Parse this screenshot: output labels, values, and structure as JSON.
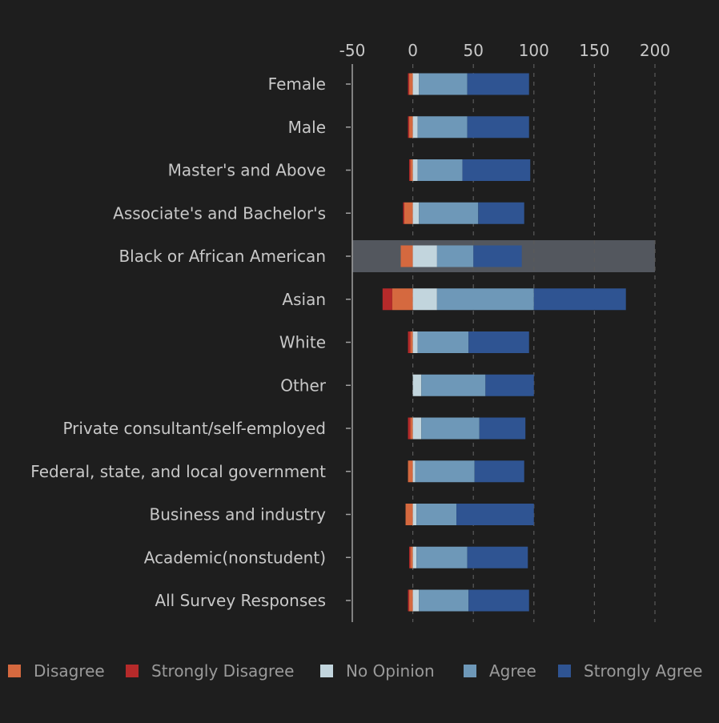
{
  "chart_data": {
    "type": "bar",
    "orientation": "horizontal",
    "stacked": true,
    "x_ticks": [
      -50,
      0,
      50,
      100,
      150,
      200
    ],
    "xlim": [
      -50,
      200
    ],
    "grid": "vertical dashed",
    "legend_position": "bottom",
    "highlighted_category": "Black or African American",
    "categories": [
      "Female",
      "Male",
      "Master's and Above",
      "Associate's and Bachelor's",
      "Black or African American",
      "Asian",
      "White",
      "Other",
      "Private consultant/self-employed",
      "Federal, state, and local government",
      "Business and industry",
      "Academic(nonstudent)",
      "All Survey Responses"
    ],
    "series": [
      {
        "name": "Disagree",
        "color": "#d5693f",
        "values": [
          3,
          3,
          2,
          7,
          10,
          17,
          2,
          0,
          2,
          4,
          6,
          2,
          3
        ]
      },
      {
        "name": "Strongly Disagree",
        "color": "#b52a2a",
        "values": [
          1,
          1,
          1,
          1,
          0,
          8,
          2,
          0,
          2,
          0,
          0,
          1,
          1
        ]
      },
      {
        "name": "No Opinion",
        "color": "#c2d5dd",
        "values": [
          5,
          4,
          4,
          5,
          20,
          20,
          4,
          7,
          7,
          2,
          3,
          3,
          5
        ]
      },
      {
        "name": "Agree",
        "color": "#6e98b8",
        "values": [
          40,
          41,
          37,
          49,
          30,
          80,
          42,
          53,
          48,
          49,
          33,
          42,
          41
        ]
      },
      {
        "name": "Strongly Agree",
        "color": "#2f5492",
        "values": [
          51,
          51,
          56,
          38,
          40,
          76,
          50,
          40,
          38,
          41,
          64,
          50,
          50
        ]
      }
    ]
  }
}
